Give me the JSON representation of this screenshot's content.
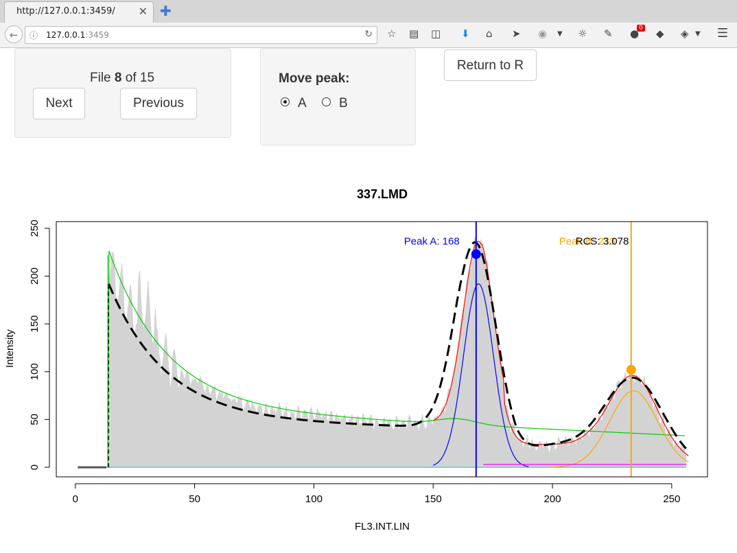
{
  "browser": {
    "tab_title": "http://127.0.0.1:3459/",
    "tab_close": "✕",
    "new_tab": "✚",
    "url_host": "127.0.0.1",
    "url_port": ":3459"
  },
  "file_panel": {
    "file_prefix": "File ",
    "file_index": "8",
    "file_middle": " of ",
    "file_total": "15",
    "next_label": "Next",
    "previous_label": "Previous"
  },
  "peak_panel": {
    "title": "Move peak:",
    "options": [
      "A",
      "B"
    ],
    "selected": "A"
  },
  "return_label": "Return to R",
  "chart_data": {
    "type": "area",
    "title": "337.LMD",
    "xlabel": "FL3.INT.LIN",
    "ylabel": "Intensity",
    "xlim": [
      -8,
      265
    ],
    "ylim": [
      -10,
      257
    ],
    "xticks": [
      0,
      50,
      100,
      150,
      200,
      250
    ],
    "yticks": [
      0,
      50,
      100,
      150,
      200,
      250
    ],
    "annotations": {
      "peak_a_text": "Peak A:  168",
      "peak_b_text": "Peak B:  233",
      "rcs_text": "RCS:  3.078"
    },
    "peak_a": {
      "x": 168,
      "y": 223,
      "color": "#0000ff"
    },
    "peak_b": {
      "x": 233,
      "y": 102,
      "color": "#ffa500"
    },
    "colors": {
      "histogram": "#d3d3d3",
      "fit": "#000000",
      "total": "#ff0000",
      "peak_a": "#0000ff",
      "peak_b": "#ffa500",
      "debris": "#00cc00",
      "aggregate": "#ff00ff",
      "baseline": "#00cccc"
    }
  }
}
